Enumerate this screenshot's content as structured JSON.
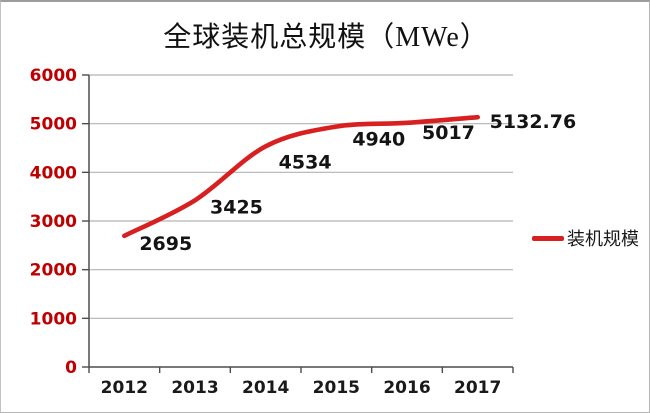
{
  "title": "全球装机总规模（MWe）",
  "legend": {
    "label": "装机规模"
  },
  "colors": {
    "line": "#d92020",
    "ytick_label": "#c00000",
    "gridline": "#b3b3b3",
    "axis_line": "#4d4d4d",
    "data_label": "#141414",
    "xtick_label": "#1a1a1a"
  },
  "chart_data": {
    "type": "line",
    "title": "全球装机总规模（MWe）",
    "categories": [
      "2012",
      "2013",
      "2014",
      "2015",
      "2016",
      "2017"
    ],
    "series": [
      {
        "name": "装机规模",
        "values": [
          2695,
          3425,
          4534,
          4940,
          5017,
          5132.76
        ]
      }
    ],
    "data_labels": [
      "2695",
      "3425",
      "4534",
      "4940",
      "5017",
      "5132.76"
    ],
    "yticks": [
      0,
      1000,
      2000,
      3000,
      4000,
      5000,
      6000
    ],
    "ylim": [
      0,
      6000
    ],
    "grid": true,
    "smooth_line": true,
    "legend_position": "right"
  }
}
